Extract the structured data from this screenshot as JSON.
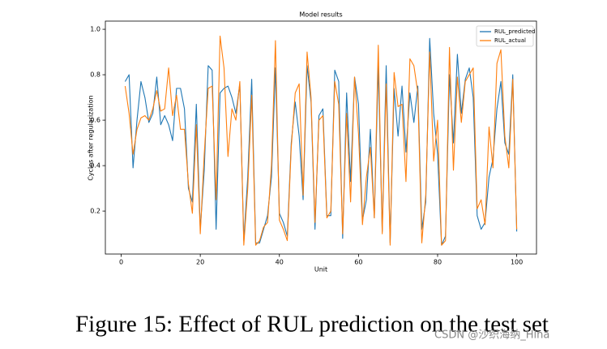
{
  "chart_data": {
    "type": "line",
    "title": "Model results",
    "xlabel": "Unit",
    "ylabel": "Cycles after regularization",
    "x": [
      1,
      2,
      3,
      4,
      5,
      6,
      7,
      8,
      9,
      10,
      11,
      12,
      13,
      14,
      15,
      16,
      17,
      18,
      19,
      20,
      21,
      22,
      23,
      24,
      25,
      26,
      27,
      28,
      29,
      30,
      31,
      32,
      33,
      34,
      35,
      36,
      37,
      38,
      39,
      40,
      41,
      42,
      43,
      44,
      45,
      46,
      47,
      48,
      49,
      50,
      51,
      52,
      53,
      54,
      55,
      56,
      57,
      58,
      59,
      60,
      61,
      62,
      63,
      64,
      65,
      66,
      67,
      68,
      69,
      70,
      71,
      72,
      73,
      74,
      75,
      76,
      77,
      78,
      79,
      80,
      81,
      82,
      83,
      84,
      85,
      86,
      87,
      88,
      89,
      90,
      91,
      92,
      93,
      94,
      95,
      96,
      97,
      98,
      99,
      100
    ],
    "series": [
      {
        "name": "RUL_predicted",
        "color": "#1f77b4",
        "values": [
          0.77,
          0.8,
          0.39,
          0.6,
          0.77,
          0.7,
          0.59,
          0.63,
          0.79,
          0.58,
          0.62,
          0.58,
          0.51,
          0.74,
          0.74,
          0.65,
          0.3,
          0.24,
          0.67,
          0.12,
          0.38,
          0.84,
          0.82,
          0.12,
          0.72,
          0.74,
          0.75,
          0.7,
          0.63,
          0.76,
          0.07,
          0.35,
          0.78,
          0.06,
          0.06,
          0.12,
          0.18,
          0.35,
          0.83,
          0.19,
          0.15,
          0.09,
          0.5,
          0.68,
          0.53,
          0.25,
          0.84,
          0.68,
          0.12,
          0.62,
          0.65,
          0.18,
          0.18,
          0.82,
          0.77,
          0.08,
          0.72,
          0.33,
          0.79,
          0.67,
          0.16,
          0.25,
          0.56,
          0.17,
          0.84,
          0.11,
          0.84,
          0.06,
          0.74,
          0.53,
          0.75,
          0.46,
          0.72,
          0.59,
          0.75,
          0.12,
          0.24,
          0.96,
          0.63,
          0.45,
          0.05,
          0.09,
          0.8,
          0.5,
          0.89,
          0.63,
          0.78,
          0.83,
          0.7,
          0.18,
          0.12,
          0.15,
          0.35,
          0.43,
          0.65,
          0.77,
          0.5,
          0.45,
          0.8,
          0.11
        ]
      },
      {
        "name": "RUL_actual",
        "color": "#ff7f0e",
        "values": [
          0.75,
          0.63,
          0.45,
          0.56,
          0.61,
          0.62,
          0.6,
          0.65,
          0.73,
          0.64,
          0.65,
          0.83,
          0.62,
          0.71,
          0.56,
          0.56,
          0.32,
          0.19,
          0.58,
          0.1,
          0.45,
          0.74,
          0.75,
          0.25,
          0.97,
          0.83,
          0.44,
          0.65,
          0.6,
          0.77,
          0.05,
          0.3,
          0.71,
          0.05,
          0.07,
          0.13,
          0.15,
          0.4,
          0.95,
          0.16,
          0.12,
          0.07,
          0.48,
          0.72,
          0.76,
          0.27,
          0.9,
          0.7,
          0.15,
          0.6,
          0.62,
          0.17,
          0.2,
          0.77,
          0.67,
          0.1,
          0.63,
          0.24,
          0.79,
          0.54,
          0.14,
          0.35,
          0.48,
          0.17,
          0.93,
          0.1,
          0.76,
          0.05,
          0.81,
          0.66,
          0.67,
          0.33,
          0.87,
          0.84,
          0.72,
          0.06,
          0.27,
          0.9,
          0.42,
          0.6,
          0.05,
          0.07,
          0.92,
          0.38,
          0.79,
          0.59,
          0.77,
          0.8,
          0.83,
          0.21,
          0.25,
          0.14,
          0.57,
          0.39,
          0.85,
          0.91,
          0.53,
          0.39,
          0.78,
          0.12
        ]
      }
    ],
    "xlim": [
      -4,
      105
    ],
    "xticks": [
      0,
      20,
      40,
      60,
      80,
      100
    ],
    "ylim": [
      0.011,
      1.036
    ],
    "yticks": [
      0.2,
      0.4,
      0.6,
      0.8,
      {
        "value": 1.0,
        "label": "1.0"
      }
    ],
    "legend": "upper right"
  },
  "caption": "Figure 15: Effect of RUL prediction on the test set",
  "watermark": "CSDN @沙织海纳_Hina"
}
